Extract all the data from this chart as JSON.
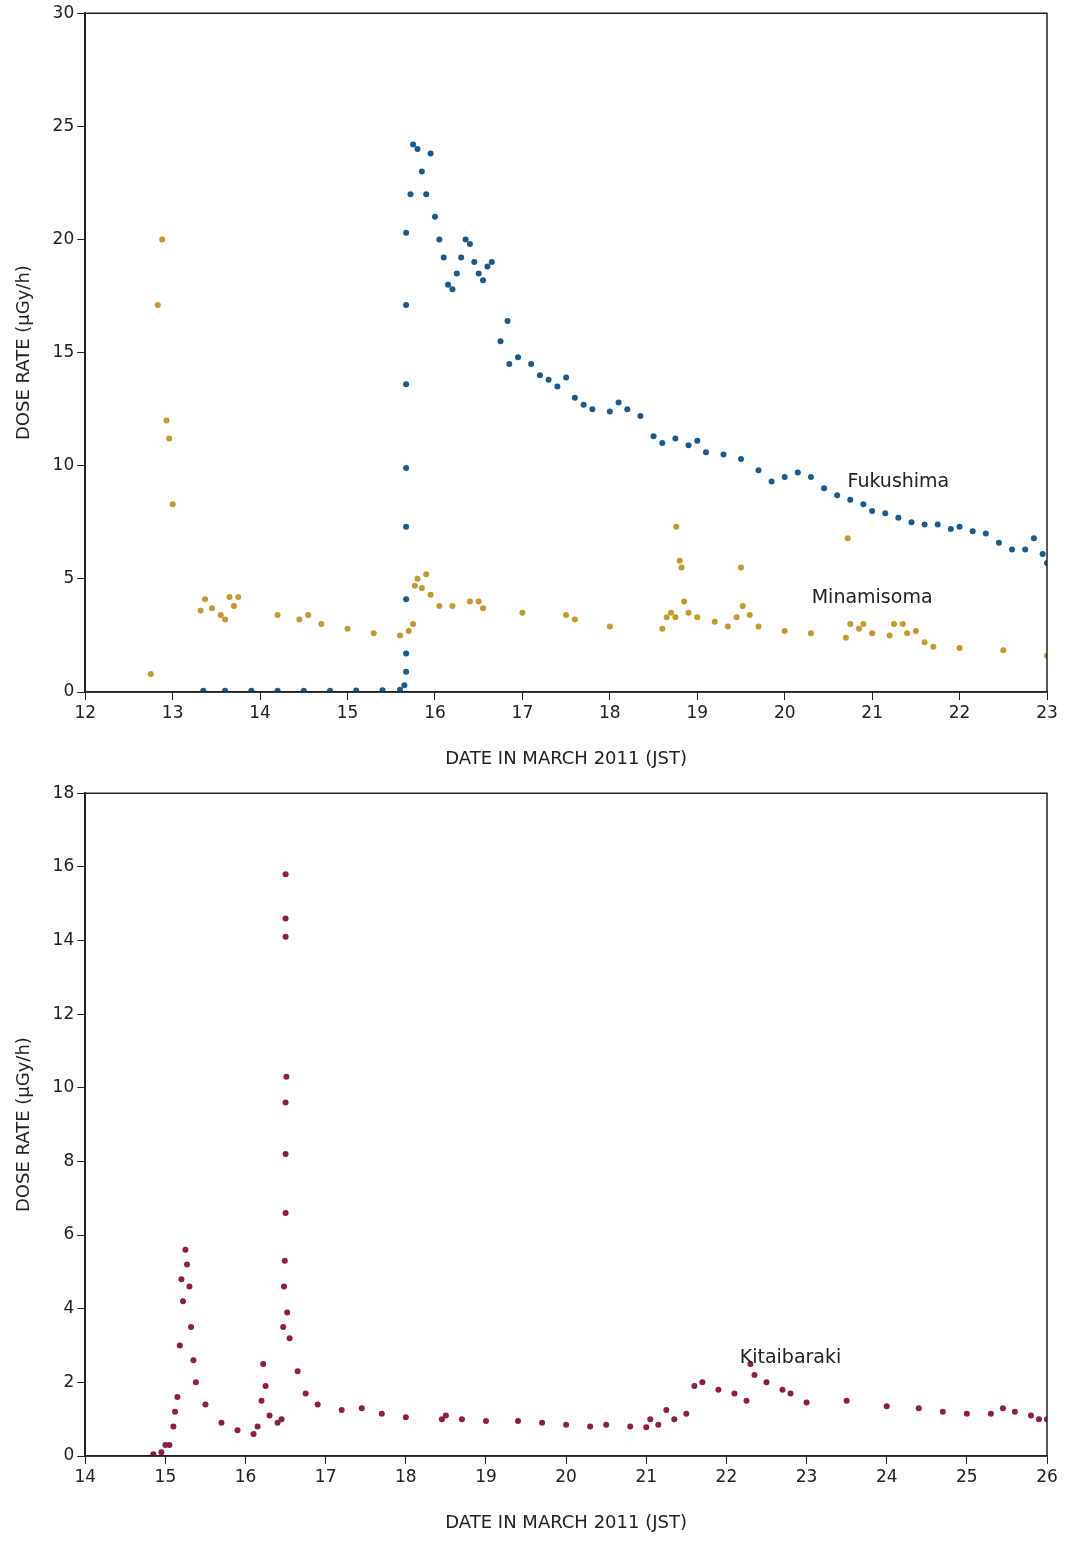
{
  "chart_data": [
    {
      "type": "scatter",
      "xlabel": "DATE IN MARCH 2011 (JST)",
      "ylabel": "DOSE RATE (µGy/h)",
      "xlim": [
        12,
        23
      ],
      "xticks": [
        12,
        13,
        14,
        15,
        16,
        17,
        18,
        19,
        20,
        21,
        22,
        23
      ],
      "ylim": [
        0,
        30
      ],
      "yticks": [
        0,
        5,
        10,
        15,
        20,
        25,
        30
      ],
      "grid": false,
      "legend": false,
      "marker": "circle",
      "series": [
        {
          "name": "Fukushima",
          "color": "#1b5a8a",
          "x": [
            13.35,
            13.6,
            13.9,
            14.2,
            14.5,
            14.8,
            15.1,
            15.4,
            15.6,
            15.65,
            15.67,
            15.67,
            15.67,
            15.67,
            15.67,
            15.67,
            15.67,
            15.67,
            15.72,
            15.75,
            15.8,
            15.85,
            15.9,
            15.95,
            16.0,
            16.05,
            16.1,
            16.15,
            16.2,
            16.25,
            16.3,
            16.35,
            16.4,
            16.45,
            16.5,
            16.55,
            16.6,
            16.65,
            16.75,
            16.83,
            16.85,
            16.95,
            17.1,
            17.2,
            17.3,
            17.4,
            17.5,
            17.6,
            17.7,
            17.8,
            18.0,
            18.1,
            18.2,
            18.35,
            18.5,
            18.6,
            18.75,
            18.9,
            19.0,
            19.1,
            19.3,
            19.5,
            19.7,
            19.85,
            20.0,
            20.15,
            20.3,
            20.45,
            20.6,
            20.75,
            20.9,
            21.0,
            21.15,
            21.3,
            21.45,
            21.6,
            21.75,
            21.9,
            22.0,
            22.15,
            22.3,
            22.45,
            22.6,
            22.75,
            22.85,
            22.95,
            23.0
          ],
          "values": [
            0.05,
            0.05,
            0.05,
            0.05,
            0.05,
            0.05,
            0.07,
            0.08,
            0.1,
            0.3,
            0.9,
            1.7,
            4.1,
            7.3,
            9.9,
            13.6,
            17.1,
            20.3,
            22,
            24.2,
            24,
            23,
            22,
            23.8,
            21,
            20,
            19.2,
            18,
            17.8,
            18.5,
            19.2,
            20,
            19.8,
            19,
            18.5,
            18.2,
            18.8,
            19,
            15.5,
            16.4,
            14.5,
            14.8,
            14.5,
            14,
            13.8,
            13.5,
            13.9,
            13,
            12.7,
            12.5,
            12.4,
            12.8,
            12.5,
            12.2,
            11.3,
            11,
            11.2,
            10.9,
            11.1,
            10.6,
            10.5,
            10.3,
            9.8,
            9.3,
            9.5,
            9.7,
            9.5,
            9,
            8.7,
            8.5,
            8.3,
            8,
            7.9,
            7.7,
            7.5,
            7.4,
            7.4,
            7.2,
            7.3,
            7.1,
            7,
            6.6,
            6.3,
            6.3,
            6.8,
            6.1,
            5.7
          ]
        },
        {
          "name": "Minamisoma",
          "color": "#c49a2e",
          "x": [
            12.75,
            12.83,
            12.88,
            12.93,
            12.96,
            13.0,
            13.32,
            13.37,
            13.45,
            13.55,
            13.6,
            13.65,
            13.7,
            13.75,
            14.2,
            14.45,
            14.55,
            14.7,
            15.0,
            15.3,
            15.6,
            15.7,
            15.75,
            15.77,
            15.8,
            15.85,
            15.9,
            15.95,
            16.05,
            16.2,
            16.4,
            16.5,
            16.55,
            17.0,
            17.5,
            17.6,
            18.0,
            18.6,
            18.65,
            18.7,
            18.75,
            18.76,
            18.8,
            18.82,
            18.85,
            18.9,
            19.0,
            19.2,
            19.35,
            19.45,
            19.5,
            19.52,
            19.6,
            19.7,
            20.0,
            20.3,
            20.7,
            20.72,
            20.75,
            20.85,
            20.9,
            21.0,
            21.2,
            21.25,
            21.35,
            21.4,
            21.5,
            21.6,
            21.7,
            22.0,
            22.5,
            23.0
          ],
          "values": [
            0.8,
            17.1,
            20,
            12,
            11.2,
            8.3,
            3.6,
            4.1,
            3.7,
            3.4,
            3.2,
            4.2,
            3.8,
            4.2,
            3.4,
            3.2,
            3.4,
            3.0,
            2.8,
            2.6,
            2.5,
            2.7,
            3.0,
            4.7,
            5.0,
            4.6,
            5.2,
            4.3,
            3.8,
            3.8,
            4.0,
            4.0,
            3.7,
            3.5,
            3.4,
            3.2,
            2.9,
            2.8,
            3.3,
            3.5,
            3.3,
            7.3,
            5.8,
            5.5,
            4.0,
            3.5,
            3.3,
            3.1,
            2.9,
            3.3,
            5.5,
            3.8,
            3.4,
            2.9,
            2.7,
            2.6,
            2.4,
            6.8,
            3.0,
            2.8,
            3.0,
            2.6,
            2.5,
            3.0,
            3.0,
            2.6,
            2.7,
            2.2,
            2.0,
            1.95,
            1.85,
            1.6
          ]
        }
      ]
    },
    {
      "type": "scatter",
      "xlabel": "DATE IN MARCH 2011 (JST)",
      "ylabel": "DOSE RATE (µGy/h)",
      "xlim": [
        14,
        26
      ],
      "xticks": [
        14,
        15,
        16,
        17,
        18,
        19,
        20,
        21,
        22,
        23,
        24,
        25,
        26
      ],
      "ylim": [
        0,
        18
      ],
      "yticks": [
        0,
        2,
        4,
        6,
        8,
        10,
        12,
        14,
        16,
        18
      ],
      "grid": false,
      "legend": false,
      "marker": "circle",
      "series": [
        {
          "name": "Kitaibaraki",
          "color": "#8e1c4c",
          "x": [
            14.85,
            14.95,
            15.0,
            15.05,
            15.1,
            15.12,
            15.15,
            15.18,
            15.2,
            15.22,
            15.25,
            15.27,
            15.3,
            15.32,
            15.35,
            15.38,
            15.5,
            15.7,
            15.9,
            16.1,
            16.15,
            16.2,
            16.22,
            16.25,
            16.3,
            16.4,
            16.45,
            16.47,
            16.48,
            16.49,
            16.5,
            16.5,
            16.5,
            16.51,
            16.5,
            16.5,
            16.5,
            16.52,
            16.55,
            16.65,
            16.75,
            16.9,
            17.2,
            17.45,
            17.7,
            18.0,
            18.45,
            18.5,
            18.7,
            19.0,
            19.4,
            19.7,
            20.0,
            20.3,
            20.5,
            20.8,
            21.0,
            21.05,
            21.15,
            21.25,
            21.35,
            21.5,
            21.6,
            21.7,
            21.9,
            22.1,
            22.25,
            22.3,
            22.35,
            22.5,
            22.7,
            22.8,
            23.0,
            23.5,
            24.0,
            24.4,
            24.7,
            25.0,
            25.3,
            25.45,
            25.6,
            25.8,
            25.9,
            26.0
          ],
          "values": [
            0.05,
            0.1,
            0.3,
            0.3,
            0.8,
            1.2,
            1.6,
            3.0,
            4.8,
            4.2,
            5.6,
            5.2,
            4.6,
            3.5,
            2.6,
            2.0,
            1.4,
            0.9,
            0.7,
            0.6,
            0.8,
            1.5,
            2.5,
            1.9,
            1.1,
            0.9,
            1.0,
            3.5,
            4.6,
            5.3,
            6.6,
            8.2,
            9.6,
            10.3,
            14.1,
            14.6,
            15.8,
            3.9,
            3.2,
            2.3,
            1.7,
            1.4,
            1.25,
            1.3,
            1.15,
            1.05,
            1.0,
            1.1,
            1.0,
            0.95,
            0.95,
            0.9,
            0.85,
            0.8,
            0.85,
            0.8,
            0.78,
            1.0,
            0.85,
            1.25,
            1.0,
            1.15,
            1.9,
            2.0,
            1.8,
            1.7,
            1.5,
            2.5,
            2.2,
            2.0,
            1.8,
            1.7,
            1.45,
            1.5,
            1.35,
            1.3,
            1.2,
            1.15,
            1.15,
            1.3,
            1.2,
            1.1,
            1.0,
            1.0
          ]
        }
      ]
    }
  ]
}
